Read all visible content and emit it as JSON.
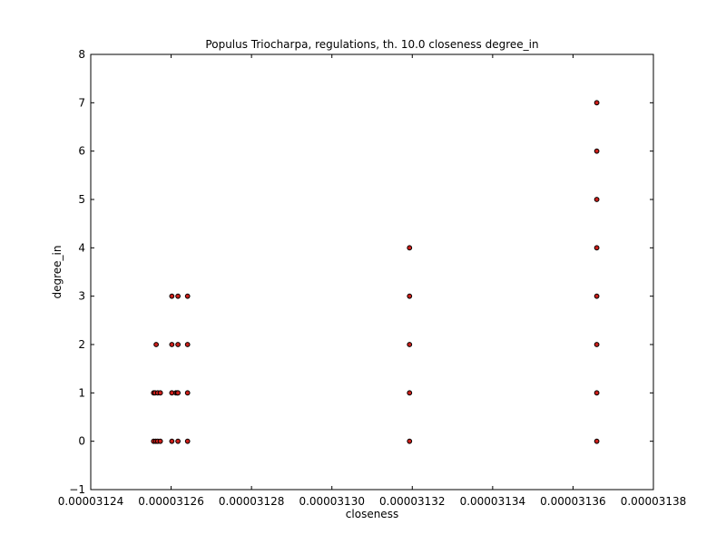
{
  "chart_data": {
    "type": "scatter",
    "title": "Populus Triocharpa, regulations, th. 10.0 closeness degree_in",
    "xlabel": "closeness",
    "ylabel": "degree_in",
    "xlim": [
      3.124e-05,
      3.138e-05
    ],
    "ylim": [
      -1,
      8
    ],
    "x_ticks": [
      3.124e-05,
      3.126e-05,
      3.128e-05,
      3.13e-05,
      3.132e-05,
      3.134e-05,
      3.136e-05,
      3.138e-05
    ],
    "x_tick_labels": [
      "0.00003124",
      "0.00003126",
      "0.00003128",
      "0.00003130",
      "0.00003132",
      "0.00003134",
      "0.00003136",
      "0.00003138"
    ],
    "y_ticks": [
      -1,
      0,
      1,
      2,
      3,
      4,
      5,
      6,
      7,
      8
    ],
    "y_tick_labels": [
      "−1",
      "0",
      "1",
      "2",
      "3",
      "4",
      "5",
      "6",
      "7",
      "8"
    ],
    "grid": false,
    "marker_color": "#cc1f1a",
    "marker_edge_color": "#000000",
    "points": [
      {
        "x": 3.125565e-05,
        "y": 0
      },
      {
        "x": 3.125618e-05,
        "y": 0
      },
      {
        "x": 3.125667e-05,
        "y": 0
      },
      {
        "x": 3.125731e-05,
        "y": 0
      },
      {
        "x": 3.125565e-05,
        "y": 1
      },
      {
        "x": 3.1256e-05,
        "y": 1
      },
      {
        "x": 3.125667e-05,
        "y": 1
      },
      {
        "x": 3.125731e-05,
        "y": 1
      },
      {
        "x": 3.125628e-05,
        "y": 2
      },
      {
        "x": 3.126018e-05,
        "y": 0
      },
      {
        "x": 3.126018e-05,
        "y": 1
      },
      {
        "x": 3.126018e-05,
        "y": 2
      },
      {
        "x": 3.126018e-05,
        "y": 3
      },
      {
        "x": 3.12612e-05,
        "y": 1
      },
      {
        "x": 3.126155e-05,
        "y": 1
      },
      {
        "x": 3.12617e-05,
        "y": 0
      },
      {
        "x": 3.12617e-05,
        "y": 1
      },
      {
        "x": 3.12617e-05,
        "y": 2
      },
      {
        "x": 3.12617e-05,
        "y": 3
      },
      {
        "x": 3.126409e-05,
        "y": 0
      },
      {
        "x": 3.126409e-05,
        "y": 1
      },
      {
        "x": 3.126409e-05,
        "y": 2
      },
      {
        "x": 3.126409e-05,
        "y": 3
      },
      {
        "x": 3.131932e-05,
        "y": 0
      },
      {
        "x": 3.131932e-05,
        "y": 1
      },
      {
        "x": 3.131932e-05,
        "y": 2
      },
      {
        "x": 3.131932e-05,
        "y": 3
      },
      {
        "x": 3.131932e-05,
        "y": 4
      },
      {
        "x": 3.136591e-05,
        "y": 0
      },
      {
        "x": 3.136591e-05,
        "y": 1
      },
      {
        "x": 3.136591e-05,
        "y": 2
      },
      {
        "x": 3.136591e-05,
        "y": 3
      },
      {
        "x": 3.136591e-05,
        "y": 4
      },
      {
        "x": 3.136591e-05,
        "y": 5
      },
      {
        "x": 3.136591e-05,
        "y": 6
      },
      {
        "x": 3.136591e-05,
        "y": 7
      }
    ]
  }
}
